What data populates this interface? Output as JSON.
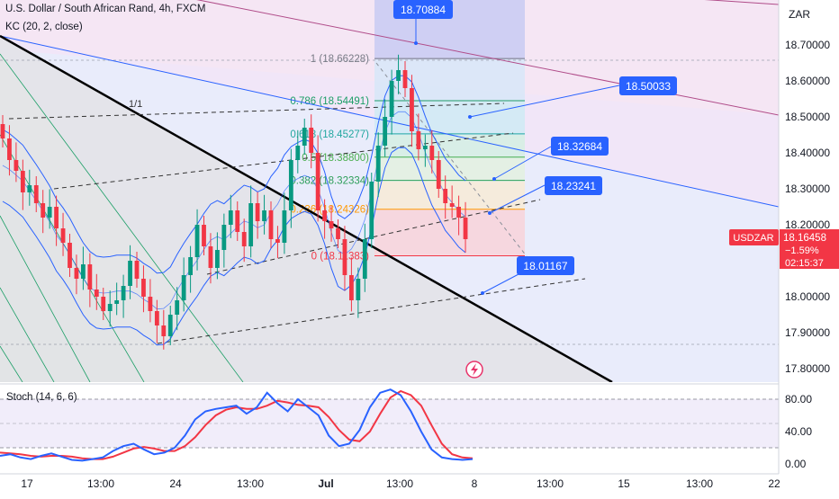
{
  "header": {
    "symbol_line": "U.S. Dollar / South African Rand, 4h, FXCM",
    "indicator_line": "KC (20, 2, close)"
  },
  "price_axis": {
    "currency": "ZAR",
    "ticks": [
      "18.70000",
      "18.60000",
      "18.50000",
      "18.40000",
      "18.30000",
      "18.20000",
      "18.00000",
      "17.90000",
      "17.80000"
    ]
  },
  "last_price": {
    "ticker": "USDZAR",
    "price": "18.16458",
    "change": "−1.59%",
    "countdown": "02:15:37",
    "color": "#f23645"
  },
  "fib_labels": [
    {
      "text": "1 (18.66228)"
    },
    {
      "text": "0.786 (18.54491)"
    },
    {
      "text": "0.618 (18.45277)"
    },
    {
      "text": "0.5 (18.38800)"
    },
    {
      "text": "0.382 (18.32334)"
    },
    {
      "text": "0.236 (18.24326)"
    },
    {
      "text": "0 (18.11383)"
    }
  ],
  "gann_label": "1/1",
  "callouts": {
    "top": "18.70884",
    "right_upper": "18.50033",
    "mid": "18.32684",
    "low": "18.23241",
    "bottom": "18.01167"
  },
  "stoch": {
    "title": "Stoch (14, 6, 6)",
    "ticks": [
      "80.00",
      "40.00",
      "0.00"
    ],
    "k_color": "#2962ff",
    "d_color": "#f23645"
  },
  "time_axis": {
    "labels": [
      "17",
      "13:00",
      "24",
      "13:00",
      "Jul",
      "13:00",
      "8",
      "13:00",
      "15",
      "13:00",
      "22"
    ]
  },
  "chart_data": {
    "type": "candlestick",
    "title": "U.S. Dollar / South African Rand, 4h, FXCM",
    "y_unit": "ZAR",
    "ylim": [
      17.77,
      18.76
    ],
    "fib_levels": [
      18.66228,
      18.54491,
      18.45277,
      18.388,
      18.32334,
      18.24326,
      18.11383
    ],
    "close_series": [
      18.44,
      18.38,
      18.35,
      18.29,
      18.31,
      18.26,
      18.22,
      18.25,
      18.19,
      18.15,
      18.08,
      18.05,
      18.09,
      18.02,
      18.0,
      17.96,
      17.98,
      17.99,
      18.03,
      18.1,
      18.05,
      18.0,
      17.96,
      17.92,
      17.89,
      17.95,
      17.99,
      18.06,
      18.11,
      18.2,
      18.14,
      18.08,
      18.13,
      18.2,
      18.24,
      18.18,
      18.14,
      18.26,
      18.21,
      18.24,
      18.16,
      18.15,
      18.24,
      18.38,
      18.42,
      18.47,
      18.4,
      18.24,
      18.21,
      18.19,
      18.16,
      18.06,
      17.99,
      18.05,
      18.16,
      18.32,
      18.42,
      18.5,
      18.6,
      18.63,
      18.58,
      18.46,
      18.41,
      18.42,
      18.38,
      18.3,
      18.26,
      18.25,
      18.22,
      18.16
    ],
    "stoch_k": [
      10,
      12,
      8,
      6,
      10,
      13,
      9,
      5,
      4,
      6,
      8,
      16,
      22,
      25,
      18,
      12,
      14,
      20,
      35,
      55,
      65,
      68,
      70,
      72,
      62,
      70,
      88,
      75,
      65,
      80,
      70,
      60,
      35,
      22,
      25,
      42,
      70,
      88,
      92,
      85,
      65,
      40,
      18,
      8,
      6,
      5,
      6
    ],
    "stoch_d": [
      14,
      13,
      12,
      10,
      9,
      10,
      10,
      9,
      7,
      6,
      6,
      9,
      14,
      19,
      21,
      19,
      16,
      16,
      22,
      33,
      48,
      60,
      67,
      70,
      68,
      68,
      72,
      78,
      76,
      73,
      72,
      70,
      58,
      42,
      30,
      28,
      40,
      62,
      82,
      90,
      85,
      72,
      48,
      25,
      12,
      8,
      7
    ],
    "stoch_ylim": [
      0,
      100
    ]
  }
}
